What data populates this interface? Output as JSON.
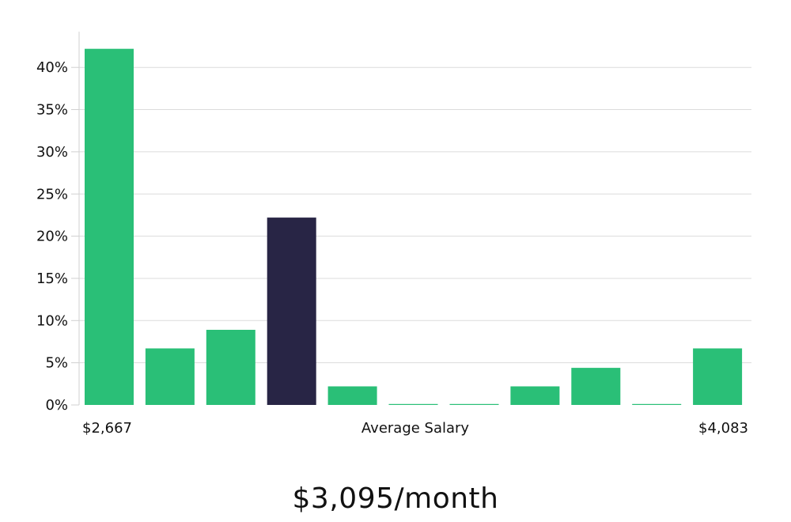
{
  "chart_data": {
    "type": "bar",
    "xlabel": "Average Salary",
    "x_min_label": "$2,667",
    "x_max_label": "$4,083",
    "ylim": [
      0,
      44
    ],
    "yticks": [
      0,
      5,
      10,
      15,
      20,
      25,
      30,
      35,
      40
    ],
    "ytick_labels": [
      "0%",
      "5%",
      "10%",
      "15%",
      "20%",
      "25%",
      "30%",
      "35%",
      "40%"
    ],
    "grid": true,
    "values": [
      42.2,
      6.7,
      8.9,
      22.2,
      2.2,
      0,
      0,
      2.2,
      4.4,
      0,
      6.7
    ],
    "highlight_index": 3,
    "colors": {
      "bar": "#2abf77",
      "highlight": "#282545",
      "grid": "#dcdcdc",
      "axis": "#d0d0d0"
    }
  },
  "salary_text": "$3,095/month"
}
